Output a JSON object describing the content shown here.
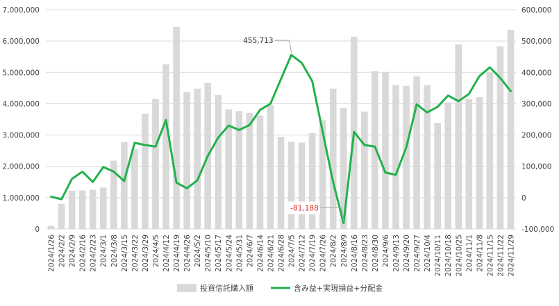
{
  "chart_data": {
    "type": "bar",
    "categories": [
      "2024/1/26",
      "2024/2/2",
      "2024/2/9",
      "2024/2/16",
      "2024/2/23",
      "2024/3/1",
      "2024/3/8",
      "2024/3/15",
      "2024/3/22",
      "2024/3/29",
      "2024/4/5",
      "2024/4/12",
      "2024/4/19",
      "2024/4/26",
      "2024/5/2",
      "2024/5/10",
      "2024/5/17",
      "2024/5/24",
      "2024/5/31",
      "2024/6/7",
      "2024/6/14",
      "2024/6/21",
      "2024/6/28",
      "2024/7/5",
      "2024/7/12",
      "2024/7/19",
      "2024/7/26",
      "2024/8/2",
      "2024/8/9",
      "2024/8/16",
      "2024/8/23",
      "2024/8/30",
      "2024/9/6",
      "2024/9/13",
      "2024/9/20",
      "2024/9/27",
      "2024/10/4",
      "2024/10/11",
      "2024/10/18",
      "2024/10/25",
      "2024/11/1",
      "2024/11/8",
      "2024/11/15",
      "2024/11/22",
      "2024/11/29"
    ],
    "series": [
      {
        "name": "投資信託購入額",
        "type": "bar",
        "axis": "left",
        "color": "#d9d9d9",
        "values": [
          100000,
          800000,
          1220000,
          1230000,
          1250000,
          1320000,
          2180000,
          2770000,
          2550000,
          3680000,
          4150000,
          5260000,
          6450000,
          4370000,
          4480000,
          4660000,
          4280000,
          3820000,
          3760000,
          3700000,
          3620000,
          3960000,
          2940000,
          2780000,
          2760000,
          3060000,
          3470000,
          4480000,
          3860000,
          6140000,
          3750000,
          5040000,
          5010000,
          4590000,
          4570000,
          4870000,
          4590000,
          3390000,
          4040000,
          5890000,
          4150000,
          4210000,
          4990000,
          5830000,
          6360000
        ]
      },
      {
        "name": "含み益+実現損益+分配金",
        "type": "line",
        "axis": "right",
        "color": "#22b14c",
        "values": [
          3000,
          -5000,
          60000,
          83000,
          50000,
          98000,
          83000,
          53000,
          175000,
          168000,
          163000,
          248000,
          48000,
          30000,
          55000,
          133000,
          192000,
          230000,
          216000,
          232000,
          280000,
          300000,
          378000,
          455713,
          430000,
          372000,
          210000,
          50000,
          -81188,
          210000,
          168000,
          163000,
          80000,
          73000,
          160000,
          298000,
          272000,
          290000,
          326000,
          308000,
          331000,
          388000,
          416000,
          382000,
          340000
        ]
      }
    ],
    "y_left": {
      "min": 0,
      "max": 7000000,
      "step": 1000000,
      "tick_labels": [
        "0",
        "1,000,000",
        "2,000,000",
        "3,000,000",
        "4,000,000",
        "5,000,000",
        "6,000,000",
        "7,000,000"
      ]
    },
    "y_right": {
      "min": -100000,
      "max": 600000,
      "step": 100000,
      "tick_labels": [
        "-100,000",
        "0",
        "100,000",
        "200,000",
        "300,000",
        "400,000",
        "500,000",
        "600,000"
      ]
    },
    "annotations": [
      {
        "label": "455,713",
        "category": "2024/7/5",
        "value": 455713,
        "color": "#333333"
      },
      {
        "label": "-81,188",
        "category": "2024/8/9",
        "value": -81188,
        "color": "#e0332b"
      }
    ],
    "grid": true,
    "legend_position": "bottom"
  }
}
